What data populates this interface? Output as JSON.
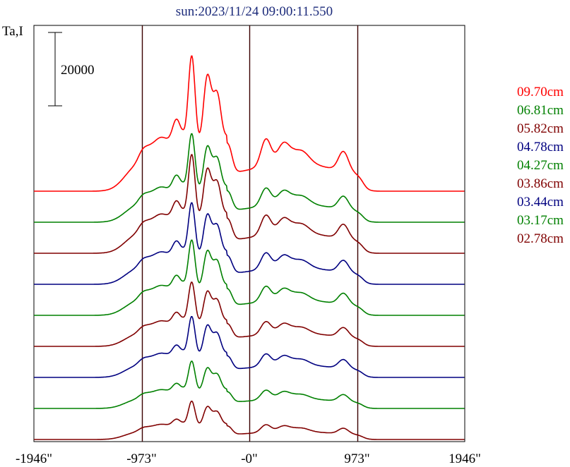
{
  "chart_data": {
    "type": "line",
    "title": "sun:2023/11/24 09:00:11.550",
    "ylabel": "Ta,I",
    "scale_bar_label": "20000",
    "scale_bar_value": 20000,
    "xlim": [
      -1946,
      1946
    ],
    "x_ticks": [
      {
        "value": -1946,
        "label": "-1946\""
      },
      {
        "value": -973,
        "label": "-973\""
      },
      {
        "value": 0,
        "label": "-0\""
      },
      {
        "value": 973,
        "label": "973\""
      },
      {
        "value": 1946,
        "label": "1946\""
      }
    ],
    "vlines": [
      -973,
      0,
      973
    ],
    "grid": false,
    "legend_position": "right",
    "series": [
      {
        "name": "09.70cm",
        "color": "#ff0000"
      },
      {
        "name": "06.81cm",
        "color": "#008000"
      },
      {
        "name": "05.82cm",
        "color": "#800000"
      },
      {
        "name": "04.78cm",
        "color": "#000080"
      },
      {
        "name": "04.27cm",
        "color": "#008000"
      },
      {
        "name": "03.86cm",
        "color": "#800000"
      },
      {
        "name": "03.44cm",
        "color": "#000080"
      },
      {
        "name": "03.17cm",
        "color": "#008000"
      },
      {
        "name": "02.78cm",
        "color": "#800000"
      }
    ]
  }
}
